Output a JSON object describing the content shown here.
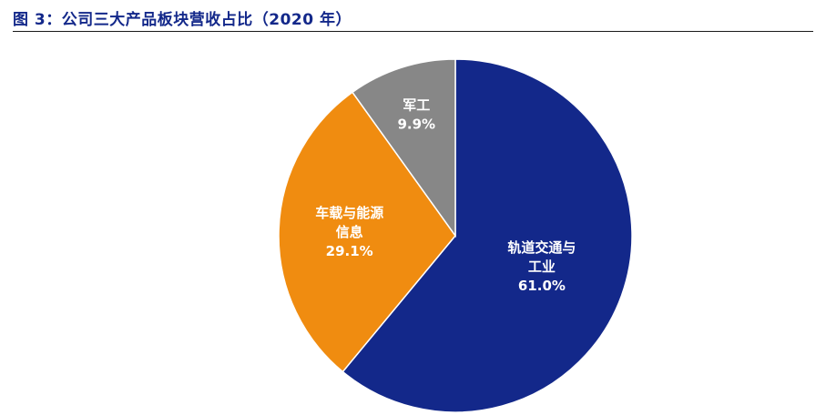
{
  "title": "图 3：公司三大产品板块营收占比（2020 年）",
  "chart_data": {
    "type": "pie",
    "title": "公司三大产品板块营收占比（2020 年）",
    "start_angle_deg": 0,
    "direction": "clockwise",
    "slices": [
      {
        "name_lines": [
          "轨道交通与",
          "工业"
        ],
        "value": 61.0,
        "label": "61.0%",
        "color": "#13288a"
      },
      {
        "name_lines": [
          "车载与能源",
          "信息"
        ],
        "value": 29.1,
        "label": "29.1%",
        "color": "#f08c10"
      },
      {
        "name_lines": [
          "军工"
        ],
        "value": 9.9,
        "label": "9.9%",
        "color": "#878787"
      }
    ]
  }
}
